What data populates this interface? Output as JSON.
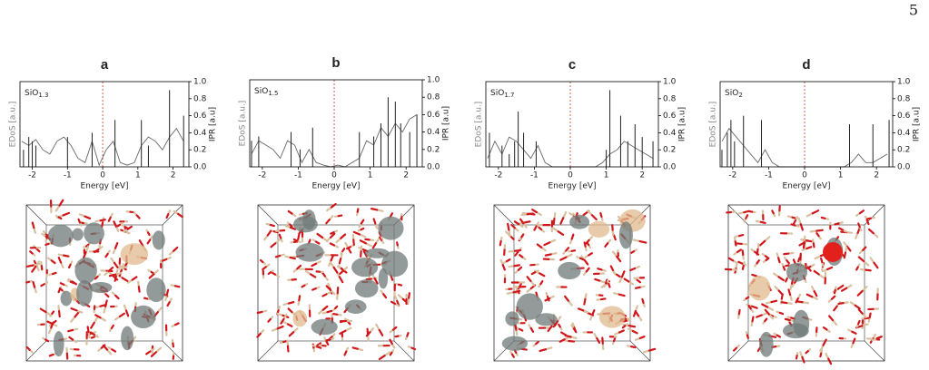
{
  "page_number": "5",
  "chart_data": [
    {
      "type": "line",
      "title": "a",
      "formula": {
        "base": "SiO",
        "subscript": "1.3"
      },
      "xlabel": "Energy [eV]",
      "ylabel": "EDoS [a.u.]",
      "y2label": "IPR [a.u]",
      "xlim": [
        -2.35,
        2.45
      ],
      "xticks": [
        -2,
        -1,
        0,
        1,
        2
      ],
      "ylim": [
        0,
        1
      ],
      "y2lim": [
        0,
        1
      ],
      "y2ticks": [
        {
          "value": 0,
          "label": "0.0"
        },
        {
          "value": 0.2,
          "label": "0.2"
        },
        {
          "value": 0.4,
          "label": "0.4"
        },
        {
          "value": 0.6,
          "label": "0.6"
        },
        {
          "value": 0.8,
          "label": "0.8"
        },
        {
          "value": 1,
          "label": "1.0"
        }
      ],
      "fermi_level": 0,
      "series": [
        {
          "name": "EDoS",
          "color": "#666666",
          "x": [
            -2.3,
            -2.1,
            -1.9,
            -1.7,
            -1.5,
            -1.3,
            -1.1,
            -0.9,
            -0.7,
            -0.5,
            -0.3,
            -0.1,
            0.1,
            0.3,
            0.5,
            0.7,
            0.9,
            1.1,
            1.3,
            1.5,
            1.7,
            1.9,
            2.1,
            2.3
          ],
          "values": [
            0.3,
            0.25,
            0.32,
            0.2,
            0.15,
            0.3,
            0.35,
            0.25,
            0.1,
            0.05,
            0.3,
            0.02,
            0.2,
            0.3,
            0.05,
            0.02,
            0.05,
            0.25,
            0.35,
            0.3,
            0.2,
            0.35,
            0.45,
            0.3
          ]
        },
        {
          "name": "IPR",
          "color": "#222222",
          "axis": "y2",
          "x": [
            -2.25,
            -2.1,
            -2.0,
            -1.9,
            -1.0,
            -0.3,
            0.35,
            1.1,
            1.3,
            1.9,
            2.3
          ],
          "values": [
            0.2,
            0.35,
            0.3,
            0.25,
            0.35,
            0.4,
            0.55,
            0.55,
            0.25,
            0.9,
            0.6
          ]
        }
      ]
    },
    {
      "type": "line",
      "title": "b",
      "formula": {
        "base": "SiO",
        "subscript": "1.5"
      },
      "xlabel": "Energy [eV]",
      "ylabel": "EDoS [a.u.]",
      "y2label": "IPR [a.u]",
      "xlim": [
        -2.35,
        2.45
      ],
      "xticks": [
        -2,
        -1,
        0,
        1,
        2
      ],
      "ylim": [
        0,
        1
      ],
      "y2lim": [
        0,
        1
      ],
      "y2ticks": [
        {
          "value": 0,
          "label": "0.0"
        },
        {
          "value": 0.2,
          "label": "0.2"
        },
        {
          "value": 0.4,
          "label": "0.4"
        },
        {
          "value": 0.6,
          "label": "0.6"
        },
        {
          "value": 0.8,
          "label": "0.8"
        },
        {
          "value": 1,
          "label": "1.0"
        }
      ],
      "fermi_level": 0,
      "series": [
        {
          "name": "EDoS",
          "color": "#666666",
          "x": [
            -2.3,
            -2.1,
            -1.9,
            -1.7,
            -1.5,
            -1.3,
            -1.1,
            -0.9,
            -0.7,
            -0.5,
            -0.3,
            -0.1,
            0.1,
            0.3,
            0.5,
            0.7,
            0.9,
            1.1,
            1.3,
            1.5,
            1.7,
            1.9,
            2.1,
            2.3
          ],
          "values": [
            0.15,
            0.3,
            0.25,
            0.2,
            0.1,
            0.3,
            0.25,
            0.05,
            0.2,
            0.05,
            0.02,
            0,
            0.02,
            0,
            0.05,
            0.1,
            0.3,
            0.25,
            0.45,
            0.35,
            0.5,
            0.4,
            0.55,
            0.6
          ]
        },
        {
          "name": "IPR",
          "color": "#222222",
          "axis": "y2",
          "x": [
            -2.3,
            -2.1,
            -1.2,
            -0.95,
            -0.6,
            0.7,
            1.1,
            1.3,
            1.5,
            1.7,
            1.85,
            2.1,
            2.3
          ],
          "values": [
            0.3,
            0.35,
            0.4,
            0.2,
            0.45,
            0.4,
            0.35,
            0.5,
            0.8,
            0.75,
            0.5,
            0.4,
            0.6
          ]
        }
      ]
    },
    {
      "type": "line",
      "title": "c",
      "formula": {
        "base": "SiO",
        "subscript": "1.7"
      },
      "xlabel": "Energy [eV]",
      "ylabel": "EDoS [a.u.]",
      "y2label": "IPR [a.u]",
      "xlim": [
        -2.35,
        2.45
      ],
      "xticks": [
        -2,
        -1,
        0,
        1,
        2
      ],
      "ylim": [
        0,
        1
      ],
      "y2lim": [
        0,
        1
      ],
      "y2ticks": [
        {
          "value": 0,
          "label": "0.0"
        },
        {
          "value": 0.2,
          "label": "0.2"
        },
        {
          "value": 0.4,
          "label": "0.4"
        },
        {
          "value": 0.6,
          "label": "0.6"
        },
        {
          "value": 0.8,
          "label": "0.8"
        },
        {
          "value": 1,
          "label": "1.0"
        }
      ],
      "fermi_level": 0,
      "series": [
        {
          "name": "EDoS",
          "color": "#666666",
          "x": [
            -2.3,
            -2.1,
            -1.9,
            -1.7,
            -1.5,
            -1.3,
            -1.1,
            -0.9,
            -0.7,
            -0.5,
            -0.3,
            -0.1,
            0.1,
            0.3,
            0.5,
            0.7,
            0.9,
            1.1,
            1.3,
            1.5,
            1.7,
            1.9,
            2.1,
            2.3
          ],
          "values": [
            0.1,
            0.3,
            0.15,
            0.35,
            0.3,
            0.2,
            0.1,
            0.25,
            0.05,
            0,
            0,
            0,
            0,
            0,
            0,
            0,
            0.05,
            0.15,
            0.2,
            0.3,
            0.25,
            0.2,
            0.15,
            0.1
          ]
        },
        {
          "name": "IPR",
          "color": "#222222",
          "axis": "y2",
          "x": [
            -2.25,
            -1.9,
            -1.7,
            -1.55,
            -1.45,
            -1.3,
            -0.95,
            1.0,
            1.1,
            1.4,
            1.6,
            1.8,
            2.0,
            2.3
          ],
          "values": [
            0.4,
            0.25,
            0.15,
            0.3,
            0.65,
            0.4,
            0.3,
            0.2,
            0.9,
            0.6,
            0.3,
            0.5,
            0.35,
            0.3
          ]
        }
      ]
    },
    {
      "type": "line",
      "title": "d",
      "formula": {
        "base": "SiO",
        "subscript": "2"
      },
      "xlabel": "Energy [eV]",
      "ylabel": "EDoS [a.u.]",
      "y2label": "IPR [a.u]",
      "xlim": [
        -2.35,
        2.45
      ],
      "xticks": [
        -2,
        -1,
        0,
        1,
        2
      ],
      "ylim": [
        0,
        1
      ],
      "y2lim": [
        0,
        1
      ],
      "y2ticks": [
        {
          "value": 0,
          "label": "0.0"
        },
        {
          "value": 0.2,
          "label": "0.2"
        },
        {
          "value": 0.4,
          "label": "0.4"
        },
        {
          "value": 0.6,
          "label": "0.6"
        },
        {
          "value": 0.8,
          "label": "0.8"
        },
        {
          "value": 1,
          "label": "1.0"
        }
      ],
      "fermi_level": 0,
      "series": [
        {
          "name": "EDoS",
          "color": "#666666",
          "x": [
            -2.3,
            -2.1,
            -1.9,
            -1.7,
            -1.5,
            -1.3,
            -1.1,
            -0.9,
            -0.7,
            -0.5,
            -0.3,
            -0.1,
            0.1,
            0.3,
            0.5,
            0.7,
            0.9,
            1.1,
            1.3,
            1.5,
            1.7,
            1.9,
            2.1,
            2.3
          ],
          "values": [
            0.3,
            0.45,
            0.35,
            0.25,
            0.15,
            0.05,
            0.2,
            0.05,
            0,
            0,
            0,
            0,
            0,
            0,
            0,
            0,
            0,
            0,
            0.05,
            0.15,
            0.05,
            0.05,
            0.1,
            0.15
          ]
        },
        {
          "name": "IPR",
          "color": "#222222",
          "axis": "y2",
          "x": [
            -2.3,
            -2.15,
            -2.05,
            -1.95,
            -1.7,
            -1.2,
            1.25,
            1.9,
            2.35
          ],
          "values": [
            0.2,
            0.4,
            0.55,
            0.3,
            0.6,
            0.55,
            0.5,
            0.5,
            0.55
          ]
        }
      ]
    }
  ]
}
